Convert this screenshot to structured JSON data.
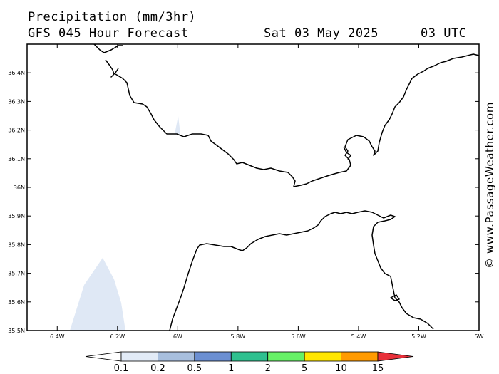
{
  "header": {
    "title": "Precipitation (mm/3hr)",
    "subtitle": "GFS 045 Hour Forecast",
    "date": "Sat 03 May 2025",
    "time": "03 UTC"
  },
  "map": {
    "lon_range": [
      -6.5,
      -5.0
    ],
    "lat_range": [
      35.5,
      36.5
    ],
    "lat_ticks": [
      "36.4N",
      "36.3N",
      "36.2N",
      "36.1N",
      "36N",
      "35.9N",
      "35.8N",
      "35.7N",
      "35.6N",
      "35.5N"
    ],
    "lon_ticks": [
      "6.4W",
      "6.2W",
      "6W",
      "5.8W",
      "5.6W",
      "5.4W",
      "5.2W",
      "5W"
    ],
    "colors": {
      "land_line": "#000000",
      "precip_light": "#dfe8f5"
    }
  },
  "credit": "© www.PassageWeather.com",
  "colorbar": {
    "labels": [
      "0.1",
      "0.2",
      "0.5",
      "1",
      "2",
      "5",
      "10",
      "15"
    ],
    "colors": [
      "#ffffff",
      "#e2ebf7",
      "#a8bfde",
      "#6b8fd2",
      "#2ec08f",
      "#66f066",
      "#ffe600",
      "#ff9a00",
      "#e8303a"
    ]
  }
}
